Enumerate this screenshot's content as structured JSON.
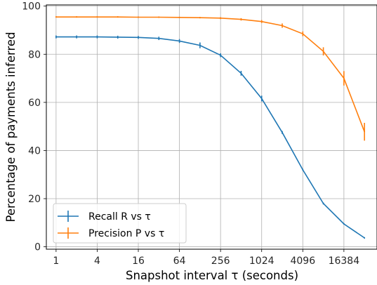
{
  "chart_data": {
    "type": "line",
    "xlabel": "Snapshot interval τ (seconds)",
    "ylabel": "Percentage of payments inferred",
    "x_scale": "log2",
    "xlim": [
      0.72,
      50000
    ],
    "ylim": [
      -1,
      100.5
    ],
    "x_ticks": [
      1,
      4,
      16,
      64,
      256,
      1024,
      4096,
      16384
    ],
    "x_tick_labels": [
      "1",
      "4",
      "16",
      "64",
      "256",
      "1024",
      "4096",
      "16384"
    ],
    "y_ticks": [
      0,
      20,
      40,
      60,
      80,
      100
    ],
    "y_tick_labels": [
      "0",
      "20",
      "40",
      "60",
      "80",
      "100"
    ],
    "grid": true,
    "legend_position": "lower-left",
    "series": [
      {
        "name": "Recall R vs τ",
        "color": "#1f77b4",
        "x": [
          1,
          2,
          4,
          8,
          16,
          32,
          64,
          128,
          256,
          512,
          1024,
          2048,
          4096,
          8192,
          16384,
          32768
        ],
        "y": [
          87.2,
          87.2,
          87.2,
          87.1,
          87.0,
          86.6,
          85.5,
          83.7,
          79.6,
          72.1,
          61.6,
          47.5,
          32.0,
          18.0,
          9.5,
          3.7
        ],
        "err": [
          0.6,
          0.6,
          0.6,
          0.6,
          0.6,
          0.7,
          0.8,
          1.2,
          0.8,
          1.0,
          1.2,
          0.6,
          0.4,
          0.4,
          0.3,
          0.3
        ]
      },
      {
        "name": "Precision P vs τ",
        "color": "#ff7f0e",
        "x": [
          1,
          2,
          4,
          8,
          16,
          32,
          64,
          128,
          256,
          512,
          1024,
          2048,
          4096,
          8192,
          16384,
          32768
        ],
        "y": [
          95.5,
          95.5,
          95.5,
          95.5,
          95.4,
          95.4,
          95.3,
          95.2,
          95.0,
          94.5,
          93.6,
          91.9,
          88.5,
          81.2,
          70.0,
          47.8
        ],
        "err": [
          0.3,
          0.3,
          0.3,
          0.3,
          0.3,
          0.3,
          0.3,
          0.3,
          0.4,
          0.5,
          0.6,
          0.9,
          1.0,
          1.7,
          3.0,
          3.7
        ]
      }
    ]
  }
}
